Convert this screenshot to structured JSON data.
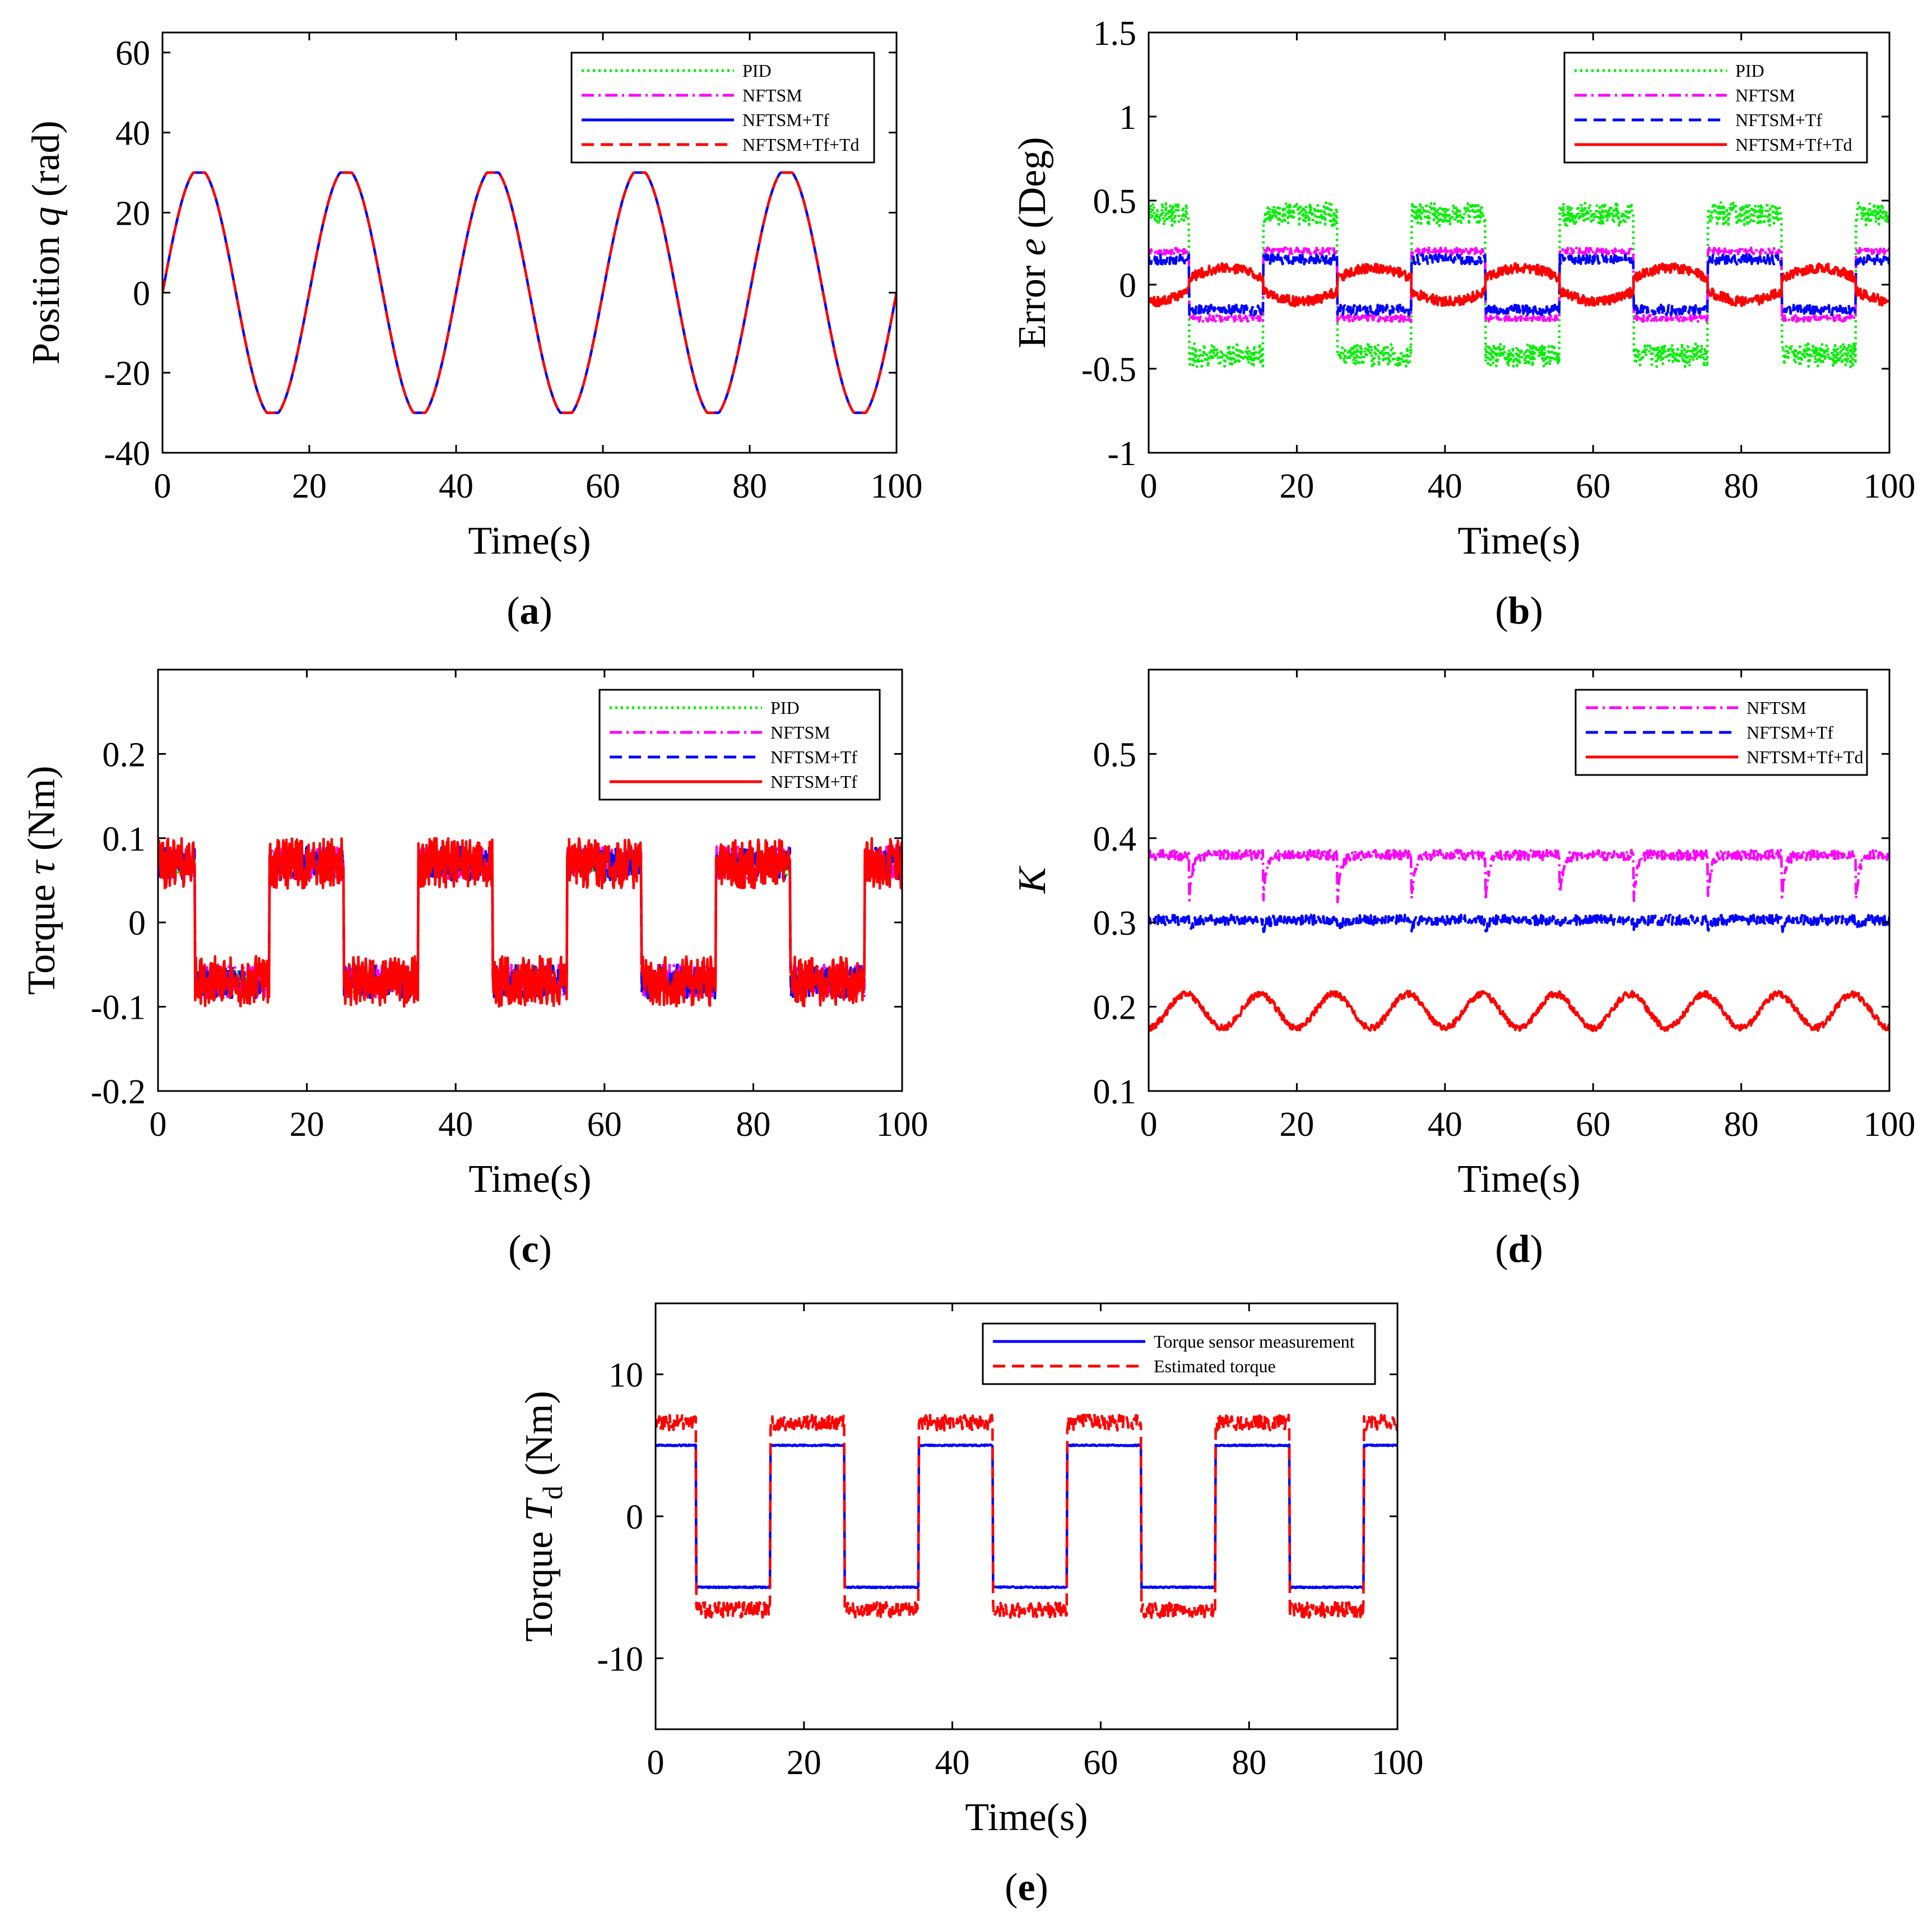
{
  "figure": {
    "panels": [
      "a",
      "b",
      "c",
      "d",
      "e"
    ]
  },
  "chart_data": [
    {
      "id": "a",
      "panel_label": "(a)",
      "type": "line",
      "title": "",
      "xlabel": "Time(s)",
      "ylabel": "Position q (rad)",
      "ylabel_parts": {
        "prefix": "Position ",
        "symbol": "q",
        "suffix": " (rad)"
      },
      "xlim": [
        0,
        100
      ],
      "ylim": [
        -40,
        65
      ],
      "xticks": [
        0,
        20,
        40,
        60,
        80,
        100
      ],
      "yticks": [
        -40,
        -20,
        0,
        20,
        40,
        60
      ],
      "legend_position": "top-right",
      "series": [
        {
          "name": "PID",
          "color": "#00ee00",
          "style": "dotted",
          "kind": "sine",
          "amplitude": 29.5,
          "period": 20,
          "clip": 30
        },
        {
          "name": "NFTSM",
          "color": "#ff00ff",
          "style": "dashdot",
          "kind": "sine",
          "amplitude": 29.5,
          "period": 20,
          "clip": 30
        },
        {
          "name": "NFTSM+Tf",
          "color": "#0000ff",
          "style": "solid",
          "kind": "sine",
          "amplitude": 29.5,
          "period": 20,
          "clip": 30
        },
        {
          "name": "NFTSM+Tf+Td",
          "color": "#ff0000",
          "style": "dashed",
          "kind": "sine",
          "amplitude": 29.5,
          "period": 20,
          "clip": 30
        }
      ]
    },
    {
      "id": "b",
      "panel_label": "(b)",
      "type": "line",
      "title": "",
      "xlabel": "Time(s)",
      "ylabel": "Error e (Deg)",
      "ylabel_parts": {
        "prefix": "Error ",
        "symbol": "e",
        "suffix": " (Deg)"
      },
      "xlim": [
        0,
        100
      ],
      "ylim": [
        -1,
        1.5
      ],
      "xticks": [
        0,
        20,
        40,
        60,
        80,
        100
      ],
      "yticks": [
        -1,
        -0.5,
        0,
        0.5,
        1,
        1.5
      ],
      "legend_position": "top-right",
      "series": [
        {
          "name": "PID",
          "color": "#00ee00",
          "style": "dotted",
          "kind": "square",
          "level": 0.42,
          "noise": 0.07,
          "half_period": 10,
          "phase": 5.5
        },
        {
          "name": "NFTSM",
          "color": "#ff00ff",
          "style": "dashdot",
          "kind": "square",
          "level": 0.2,
          "noise": 0.02,
          "half_period": 10,
          "phase": 5.5
        },
        {
          "name": "NFTSM+Tf",
          "color": "#0000ff",
          "style": "dashed",
          "kind": "square",
          "level": 0.15,
          "noise": 0.03,
          "half_period": 10,
          "phase": 5.5
        },
        {
          "name": "NFTSM+Tf+Td",
          "color": "#ff0000",
          "style": "solid",
          "kind": "tri",
          "level": 0.1,
          "noise": 0.03,
          "half_period": 10,
          "phase": 5.5
        }
      ]
    },
    {
      "id": "c",
      "panel_label": "(c)",
      "type": "line",
      "title": "",
      "xlabel": "Time(s)",
      "ylabel": "Torque τ (Nm)",
      "ylabel_parts": {
        "prefix": "Torque ",
        "symbol": "τ",
        "suffix": " (Nm)"
      },
      "xlim": [
        0,
        100
      ],
      "ylim": [
        -0.2,
        0.3
      ],
      "xticks": [
        0,
        20,
        40,
        60,
        80,
        100
      ],
      "yticks": [
        -0.2,
        -0.1,
        0,
        0.1,
        0.2
      ],
      "legend_position": "top-right",
      "series": [
        {
          "name": "PID",
          "color": "#00ee00",
          "style": "dotted",
          "kind": "square",
          "level": 0.07,
          "noise": 0.014,
          "half_period": 10,
          "phase": 5
        },
        {
          "name": "NFTSM",
          "color": "#ff00ff",
          "style": "dashdot",
          "kind": "square",
          "level": 0.07,
          "noise": 0.02,
          "half_period": 10,
          "phase": 5
        },
        {
          "name": "NFTSM+Tf",
          "color": "#0000ff",
          "style": "dashed",
          "kind": "square",
          "level": 0.07,
          "noise": 0.02,
          "half_period": 10,
          "phase": 5
        },
        {
          "name": "NFTSM+Tf",
          "color": "#ff0000",
          "style": "solid",
          "kind": "square",
          "level": 0.07,
          "noise": 0.03,
          "half_period": 10,
          "phase": 5
        }
      ]
    },
    {
      "id": "d",
      "panel_label": "(d)",
      "type": "line",
      "title": "",
      "xlabel": "Time(s)",
      "ylabel": "K",
      "ylabel_parts": {
        "prefix": "",
        "symbol": "K",
        "suffix": ""
      },
      "xlim": [
        0,
        100
      ],
      "ylim": [
        0.1,
        0.6
      ],
      "xticks": [
        0,
        20,
        40,
        60,
        80,
        100
      ],
      "yticks": [
        0.1,
        0.2,
        0.3,
        0.4,
        0.5
      ],
      "legend_position": "top-right",
      "series": [
        {
          "name": "NFTSM",
          "color": "#ff00ff",
          "style": "dashdot",
          "kind": "gain",
          "level": 0.38,
          "noise": 0.006,
          "half_period": 10,
          "phase": 5.5,
          "dip": -0.05
        },
        {
          "name": "NFTSM+Tf",
          "color": "#0000ff",
          "style": "dashed",
          "kind": "gain",
          "level": 0.303,
          "noise": 0.006,
          "half_period": 10,
          "phase": 5.5,
          "dip": -0.01
        },
        {
          "name": "NFTSM+Tf+Td",
          "color": "#ff0000",
          "style": "solid",
          "kind": "wave",
          "level": 0.195,
          "amplitude": 0.02,
          "noise": 0.004,
          "period": 10
        }
      ]
    },
    {
      "id": "e",
      "panel_label": "(e)",
      "type": "line",
      "title": "",
      "xlabel": "Time(s)",
      "ylabel": "Torque Td (Nm)",
      "ylabel_parts": {
        "prefix": "Torque ",
        "symbol": "T",
        "subscript": "d",
        "suffix": " (Nm)"
      },
      "xlim": [
        0,
        100
      ],
      "ylim": [
        -15,
        15
      ],
      "xticks": [
        0,
        20,
        40,
        60,
        80,
        100
      ],
      "yticks": [
        -10,
        0,
        10
      ],
      "legend_position": "top-right",
      "series": [
        {
          "name": "Torque sensor measurement",
          "color": "#0000ff",
          "style": "solid",
          "kind": "square",
          "level": 5.0,
          "noise": 0.05,
          "half_period": 10,
          "phase": 5.5
        },
        {
          "name": "Estimated torque",
          "color": "#ff0000",
          "style": "dashed",
          "kind": "square",
          "level": 6.6,
          "noise": 0.55,
          "half_period": 10,
          "phase": 5.5
        }
      ]
    }
  ]
}
